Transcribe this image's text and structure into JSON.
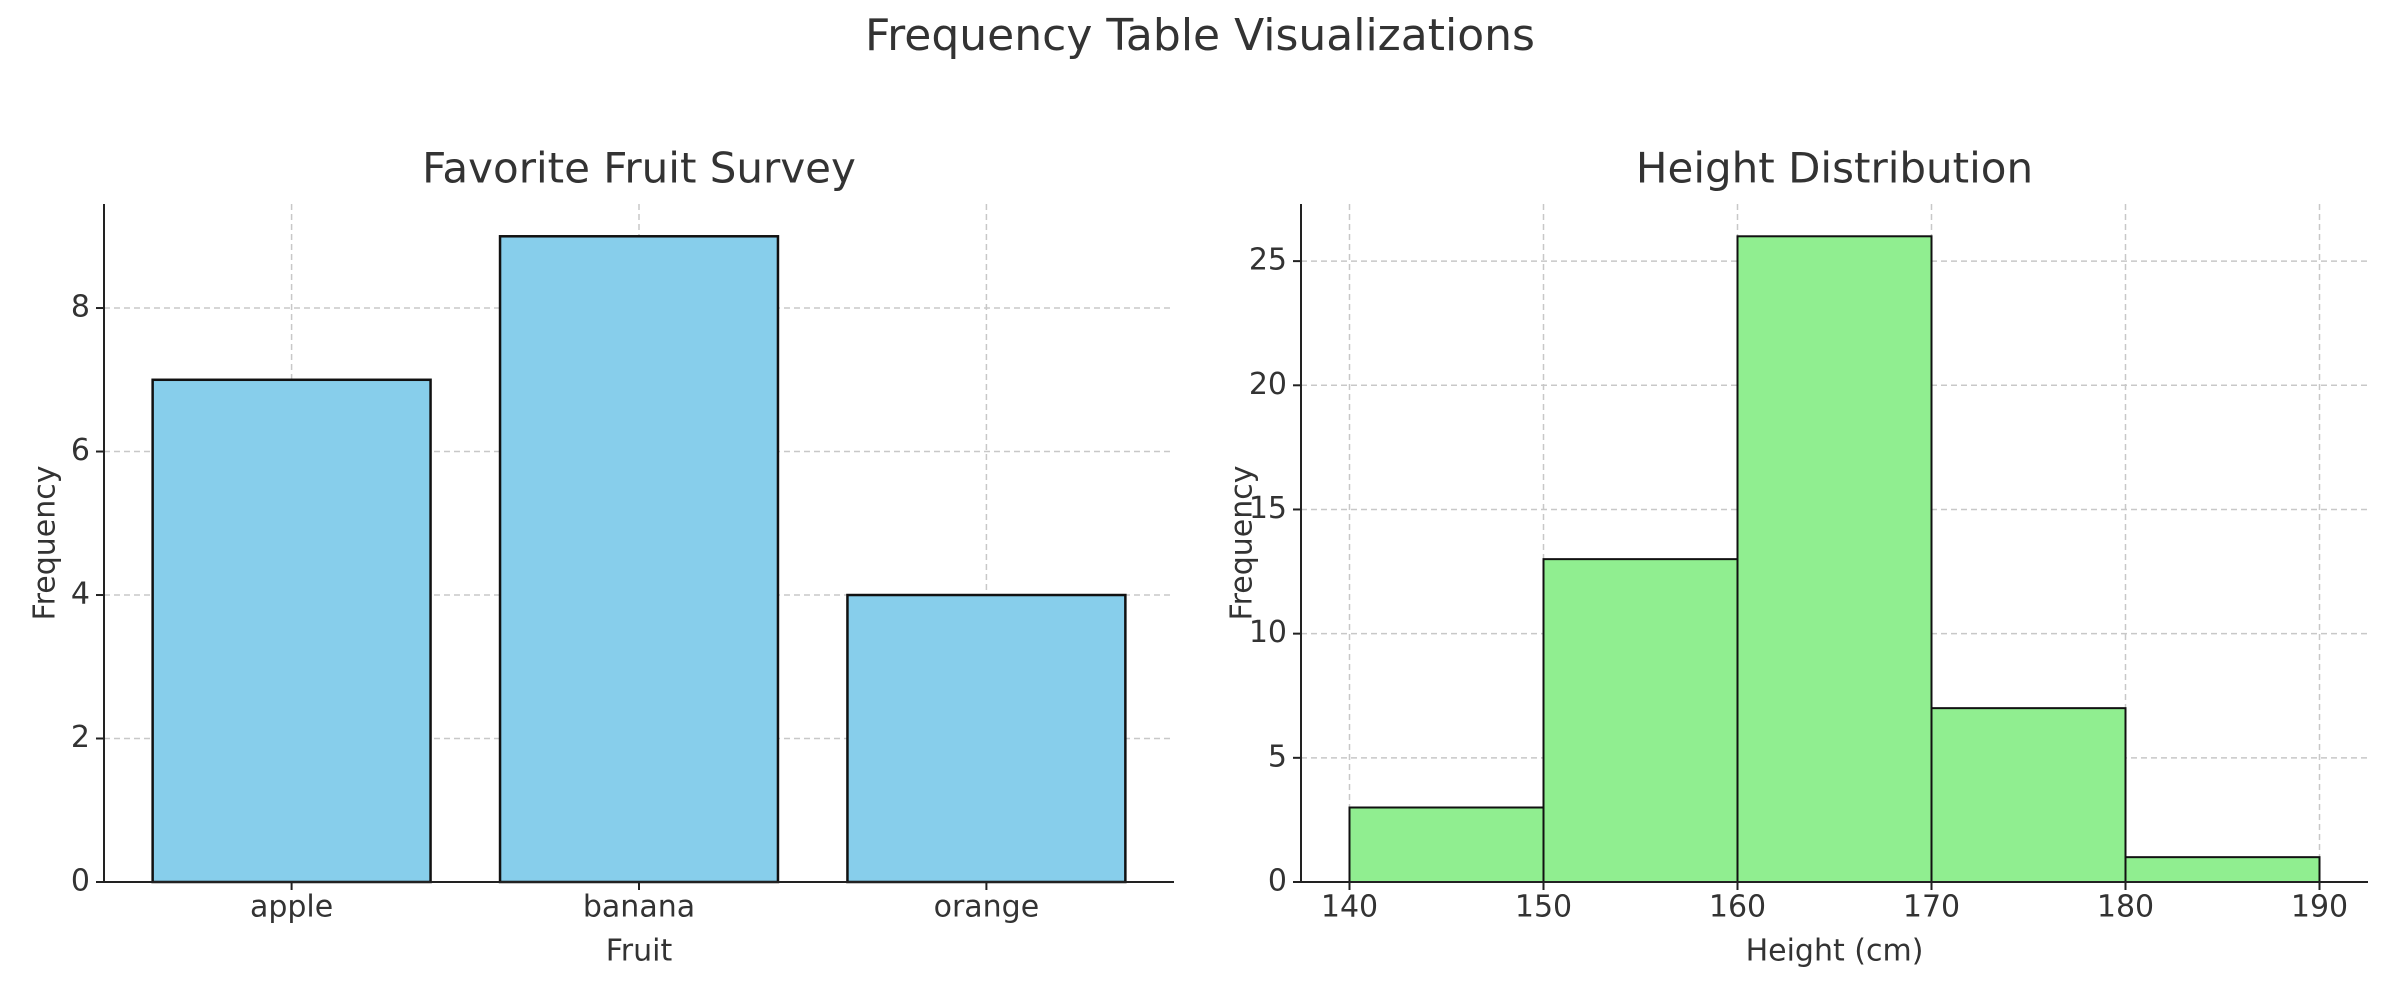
{
  "title": "Frequency Table Visualizations",
  "chart_data": [
    {
      "type": "bar",
      "title": "Favorite Fruit Survey",
      "xlabel": "Fruit",
      "ylabel": "Frequency",
      "categories": [
        "apple",
        "banana",
        "orange"
      ],
      "values": [
        7,
        9,
        4
      ],
      "color": "#87ceeb",
      "ylim": [
        0,
        9.45
      ],
      "yticks": [
        0,
        2,
        4,
        6,
        8
      ],
      "grid": true
    },
    {
      "type": "histogram",
      "title": "Height Distribution",
      "xlabel": "Height (cm)",
      "ylabel": "Frequency",
      "bins": [
        140,
        150,
        160,
        170,
        180,
        190
      ],
      "values": [
        3,
        13,
        26,
        7,
        1
      ],
      "color": "#90ee90",
      "xlim": [
        137.5,
        192.5
      ],
      "xticks": [
        140,
        150,
        160,
        170,
        180,
        190
      ],
      "ylim": [
        0,
        27.3
      ],
      "yticks": [
        0,
        5,
        10,
        15,
        20,
        25
      ],
      "grid": true
    }
  ]
}
